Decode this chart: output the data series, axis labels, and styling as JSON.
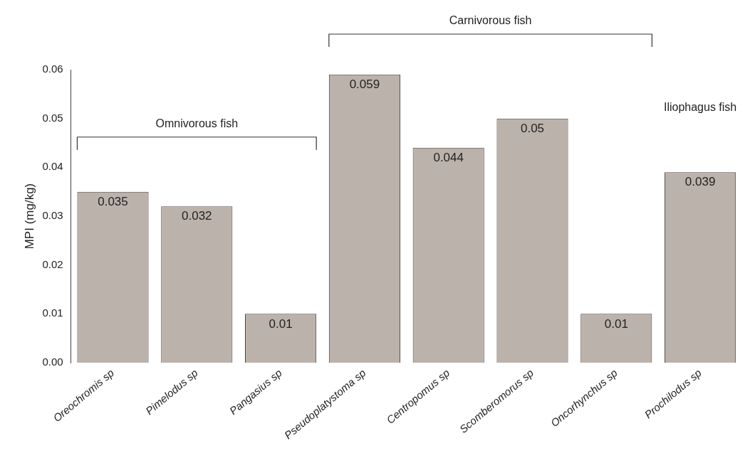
{
  "chart_data": {
    "type": "bar",
    "ylabel": "MPI (mg/kg)",
    "categories": [
      "Oreochromis sp",
      "Pimelodus sp",
      "Pangasius sp",
      "Pseudoplatystoma sp",
      "Centropomus sp",
      "Scomberomorus sp",
      "Oncorhynchus sp",
      "Prochilodus sp"
    ],
    "values": [
      0.035,
      0.032,
      0.01,
      0.059,
      0.044,
      0.05,
      0.01,
      0.039
    ],
    "color": "#bbb2ac",
    "ylim": [
      0,
      0.06
    ],
    "yticks": [
      {
        "value": 0,
        "label": "0.00"
      },
      {
        "value": 0.01,
        "label": "0.01"
      },
      {
        "value": 0.02,
        "label": "0.02"
      },
      {
        "value": 0.03,
        "label": "0.03"
      },
      {
        "value": 0.04,
        "label": "0.04"
      },
      {
        "value": 0.05,
        "label": "0.05"
      },
      {
        "value": 0.06,
        "label": "0.06"
      }
    ],
    "grid": false,
    "data_labels": true,
    "annotations": [
      "Omnivorous fish",
      "Carnivorous fish",
      "Iliophagus fish"
    ]
  }
}
